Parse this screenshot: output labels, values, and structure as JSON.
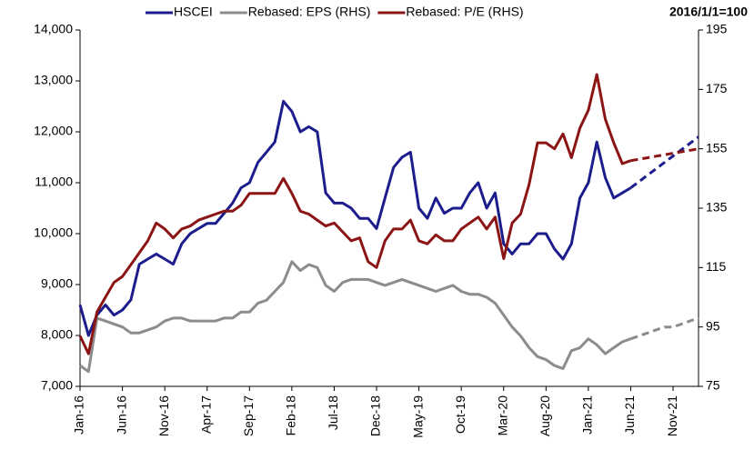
{
  "chart_data": {
    "type": "line",
    "annotation": "2016/1/1=100",
    "categories": [
      "Jan-16",
      null,
      null,
      null,
      null,
      "Jun-16",
      null,
      null,
      null,
      null,
      "Nov-16",
      null,
      null,
      null,
      null,
      "Apr-17",
      null,
      null,
      null,
      null,
      "Sep-17",
      null,
      null,
      null,
      null,
      "Feb-18",
      null,
      null,
      null,
      null,
      "Jul-18",
      null,
      null,
      null,
      null,
      "Dec-18",
      null,
      null,
      null,
      null,
      "May-19",
      null,
      null,
      null,
      null,
      "Oct-19",
      null,
      null,
      null,
      null,
      "Mar-20",
      null,
      null,
      null,
      null,
      "Aug-20",
      null,
      null,
      null,
      null,
      "Jan-21",
      null,
      null,
      null,
      null,
      "Jun-21",
      null,
      null,
      null,
      null,
      "Nov-21",
      null,
      null,
      null
    ],
    "ylim": [
      7000,
      14000
    ],
    "yticks": [
      {
        "value": 7000,
        "label": "7,000"
      },
      {
        "value": 8000,
        "label": "8,000"
      },
      {
        "value": 9000,
        "label": "9,000"
      },
      {
        "value": 10000,
        "label": "10,000"
      },
      {
        "value": 11000,
        "label": "11,000"
      },
      {
        "value": 12000,
        "label": "12,000"
      },
      {
        "value": 13000,
        "label": "13,000"
      },
      {
        "value": 14000,
        "label": "14,000"
      }
    ],
    "y2lim": [
      75,
      195
    ],
    "y2ticks": [
      75,
      95,
      115,
      135,
      155,
      175,
      195
    ],
    "legend": "top",
    "series": [
      {
        "name": "HSCEI",
        "color": "#1c1c8c",
        "values": [
          8600,
          8000,
          8400,
          8600,
          8400,
          8500,
          8700,
          9400,
          9500,
          9600,
          9500,
          9400,
          9800,
          10000,
          10100,
          10200,
          10200,
          10400,
          10600,
          10900,
          11000,
          11400,
          11600,
          11800,
          12600,
          12400,
          12000,
          12100,
          12000,
          10800,
          10600,
          10600,
          10500,
          10300,
          10300,
          10100,
          10700,
          11300,
          11500,
          11600,
          10500,
          10300,
          10700,
          10400,
          10500,
          10500,
          10800,
          11000,
          10500,
          10800,
          9800,
          9600,
          9800,
          9800,
          10000,
          10000,
          9700,
          9500,
          9800,
          10700,
          11000,
          11800,
          11100,
          10700,
          10800,
          10900,
          null,
          null,
          null,
          null,
          null,
          null,
          null,
          null
        ],
        "projection": [
          null,
          null,
          null,
          null,
          null,
          null,
          null,
          null,
          null,
          null,
          null,
          null,
          null,
          null,
          null,
          null,
          null,
          null,
          null,
          null,
          null,
          null,
          null,
          null,
          null,
          null,
          null,
          null,
          null,
          null,
          null,
          null,
          null,
          null,
          null,
          null,
          null,
          null,
          null,
          null,
          null,
          null,
          null,
          null,
          null,
          null,
          null,
          null,
          null,
          null,
          null,
          null,
          null,
          null,
          null,
          null,
          null,
          null,
          null,
          null,
          null,
          null,
          null,
          null,
          null,
          10900,
          11025,
          11150,
          11275,
          11400,
          11525,
          11650,
          11775,
          11900
        ]
      },
      {
        "name": "Rebased: EPS (RHS)",
        "color": "#8c8c8c",
        "axis": "y2",
        "values": [
          82,
          80,
          98,
          97,
          96,
          95,
          93,
          93,
          94,
          95,
          97,
          98,
          98,
          97,
          97,
          97,
          97,
          98,
          98,
          100,
          100,
          103,
          104,
          107,
          110,
          117,
          114,
          116,
          115,
          109,
          107,
          110,
          111,
          111,
          111,
          110,
          109,
          110,
          111,
          110,
          109,
          108,
          107,
          108,
          109,
          107,
          106,
          106,
          105,
          103,
          99,
          95,
          92,
          88,
          85,
          84,
          82,
          81,
          87,
          88,
          91,
          89,
          86,
          88,
          90,
          91,
          null,
          null,
          null,
          null,
          null,
          null,
          null,
          null
        ],
        "projection": [
          null,
          null,
          null,
          null,
          null,
          null,
          null,
          null,
          null,
          null,
          null,
          null,
          null,
          null,
          null,
          null,
          null,
          null,
          null,
          null,
          null,
          null,
          null,
          null,
          null,
          null,
          null,
          null,
          null,
          null,
          null,
          null,
          null,
          null,
          null,
          null,
          null,
          null,
          null,
          null,
          null,
          null,
          null,
          null,
          null,
          null,
          null,
          null,
          null,
          null,
          null,
          null,
          null,
          null,
          null,
          null,
          null,
          null,
          null,
          null,
          null,
          null,
          null,
          null,
          null,
          91,
          92,
          93,
          94,
          95,
          95,
          96,
          97,
          98
        ]
      },
      {
        "name": "Rebased: P/E (RHS)",
        "color": "#8b1414",
        "axis": "y2",
        "values": [
          92,
          86,
          100,
          105,
          110,
          112,
          116,
          120,
          124,
          130,
          128,
          125,
          128,
          129,
          131,
          132,
          133,
          134,
          134,
          136,
          140,
          140,
          140,
          140,
          145,
          140,
          134,
          133,
          131,
          129,
          130,
          127,
          124,
          125,
          117,
          115,
          124,
          128,
          128,
          131,
          124,
          123,
          126,
          124,
          124,
          128,
          130,
          132,
          128,
          132,
          118,
          130,
          133,
          143,
          157,
          157,
          155,
          160,
          152,
          162,
          168,
          180,
          165,
          157,
          150,
          151,
          null,
          null,
          null,
          null,
          null,
          null,
          null,
          null
        ],
        "projection": [
          null,
          null,
          null,
          null,
          null,
          null,
          null,
          null,
          null,
          null,
          null,
          null,
          null,
          null,
          null,
          null,
          null,
          null,
          null,
          null,
          null,
          null,
          null,
          null,
          null,
          null,
          null,
          null,
          null,
          null,
          null,
          null,
          null,
          null,
          null,
          null,
          null,
          null,
          null,
          null,
          null,
          null,
          null,
          null,
          null,
          null,
          null,
          null,
          null,
          null,
          null,
          null,
          null,
          null,
          null,
          null,
          null,
          null,
          null,
          null,
          null,
          null,
          null,
          null,
          null,
          151,
          151.5,
          152,
          152.5,
          153,
          153.5,
          154,
          154.5,
          155
        ]
      }
    ]
  }
}
